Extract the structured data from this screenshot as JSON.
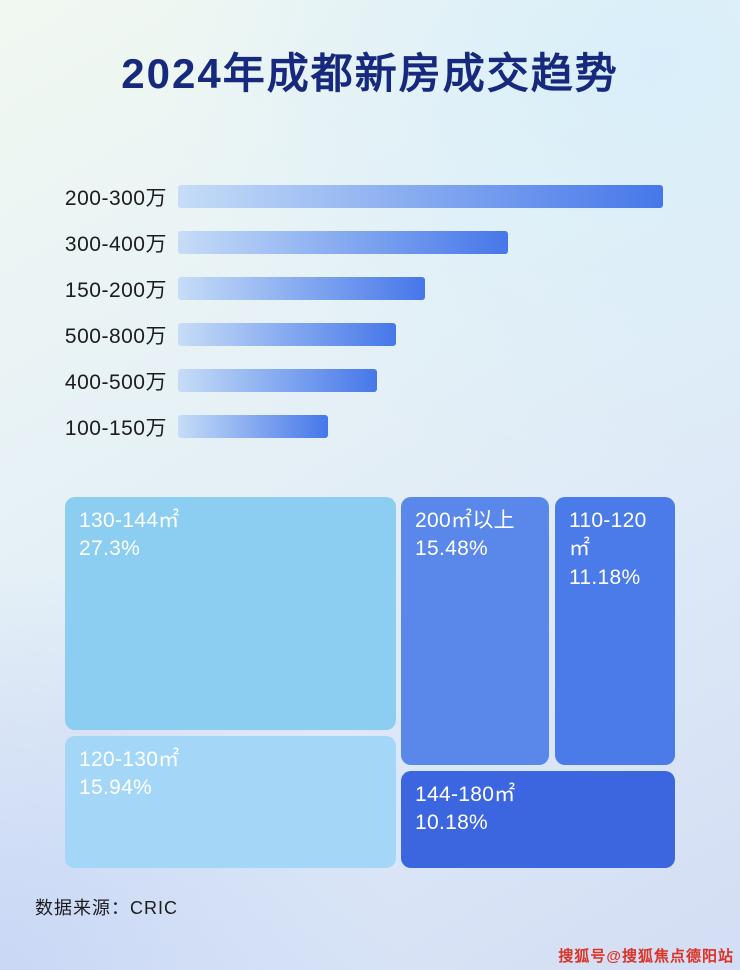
{
  "page": {
    "title": "2024年成都新房成交趋势",
    "source_note": "数据来源：CRIC",
    "watermark": "搜狐号@搜狐焦点德阳站"
  },
  "colors": {
    "title": "#16297c",
    "label_text": "#1c1c1e",
    "bar_gradient_start": "#c6ddf7",
    "bar_gradient_end": "#4677e9",
    "treemap_text": "#ffffff",
    "watermark": "#dd3326"
  },
  "chart_data": [
    {
      "type": "bar",
      "orientation": "horizontal",
      "title": "2024年成都新房成交趋势",
      "categories": [
        "200-300万",
        "300-400万",
        "150-200万",
        "500-800万",
        "400-500万",
        "100-150万"
      ],
      "values": [
        100,
        68,
        51,
        45,
        41,
        31
      ],
      "value_scale": "relative length, longest bar = 100 (no axis or data labels shown in source)",
      "xlabel": "",
      "ylabel": "",
      "grid": false,
      "legend": false
    },
    {
      "type": "treemap",
      "items": [
        {
          "label": "130-144㎡",
          "value": 27.3,
          "display": "27.3%",
          "color": "#8ccdf2"
        },
        {
          "label": "120-130㎡",
          "value": 15.94,
          "display": "15.94%",
          "color": "#a3d6f7"
        },
        {
          "label": "200㎡以上",
          "value": 15.48,
          "display": "15.48%",
          "color": "#5a87ea"
        },
        {
          "label": "110-120㎡",
          "value": 11.18,
          "display": "11.18%",
          "color": "#4b7ae9"
        },
        {
          "label": "144-180㎡",
          "value": 10.18,
          "display": "10.18%",
          "color": "#3b66e0"
        }
      ]
    }
  ]
}
